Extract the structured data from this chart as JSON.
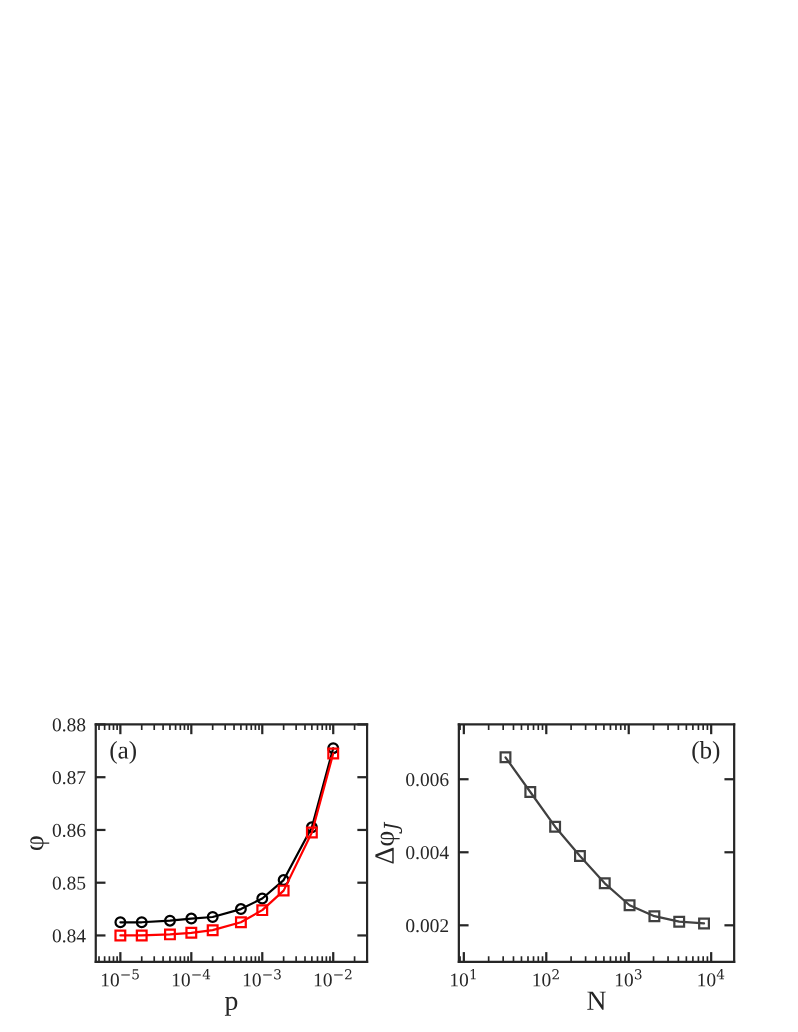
{
  "chart_data": [
    {
      "type": "line",
      "xlabel": "p",
      "ylabel": "φ",
      "log": "x",
      "grid": false,
      "line_style": "solid",
      "annotations": [
        "(a)"
      ],
      "x": [
        1e-05,
        2e-05,
        5e-05,
        0.0001,
        0.0002,
        0.0005,
        0.001,
        0.002,
        0.005,
        0.01
      ],
      "series": [
        {
          "color": "#000000",
          "marker": "circle",
          "values": [
            0.8425,
            0.8425,
            0.8428,
            0.8432,
            0.8435,
            0.845,
            0.847,
            0.8505,
            0.8605,
            0.8755
          ]
        },
        {
          "color": "#ff0000",
          "marker": "square",
          "values": [
            0.84,
            0.84,
            0.8402,
            0.8405,
            0.841,
            0.8425,
            0.8448,
            0.8485,
            0.8595,
            0.8745
          ]
        }
      ],
      "xlim": [
        4.5e-06,
        0.03
      ],
      "ylim": [
        0.835,
        0.88
      ],
      "xticks": [
        {
          "value": 1e-05,
          "label": "10$^{−5}$"
        },
        {
          "value": 0.0001,
          "label": "10$^{−4}$"
        },
        {
          "value": 0.001,
          "label": "10$^{−3}$"
        },
        {
          "value": 0.01,
          "label": "10$^{−2}$"
        }
      ],
      "yticks": [
        0.84,
        0.85,
        0.86,
        0.87,
        0.88
      ]
    },
    {
      "type": "line",
      "xlabel": "N",
      "ylabel": "Δφ$_{J}$",
      "log": "x",
      "grid": false,
      "line_style": "solid",
      "annotations": [
        "(b)"
      ],
      "x": [
        32,
        64,
        128,
        256,
        512,
        1024,
        2048,
        4096,
        8192
      ],
      "series": [
        {
          "color": "#404040",
          "marker": "square",
          "values": [
            0.0066,
            0.00565,
            0.0047,
            0.0039,
            0.00315,
            0.00255,
            0.00225,
            0.0021,
            0.00205
          ]
        }
      ],
      "xlim": [
        8.7,
        19000
      ],
      "ylim": [
        0.001,
        0.0075
      ],
      "xticks": [
        {
          "value": 10,
          "label": "10$^{1}$"
        },
        {
          "value": 100,
          "label": "10$^{2}$"
        },
        {
          "value": 1000,
          "label": "10$^{3}$"
        },
        {
          "value": 10000,
          "label": "10$^{4}$"
        }
      ],
      "yticks": [
        0.002,
        0.004,
        0.006
      ]
    }
  ]
}
